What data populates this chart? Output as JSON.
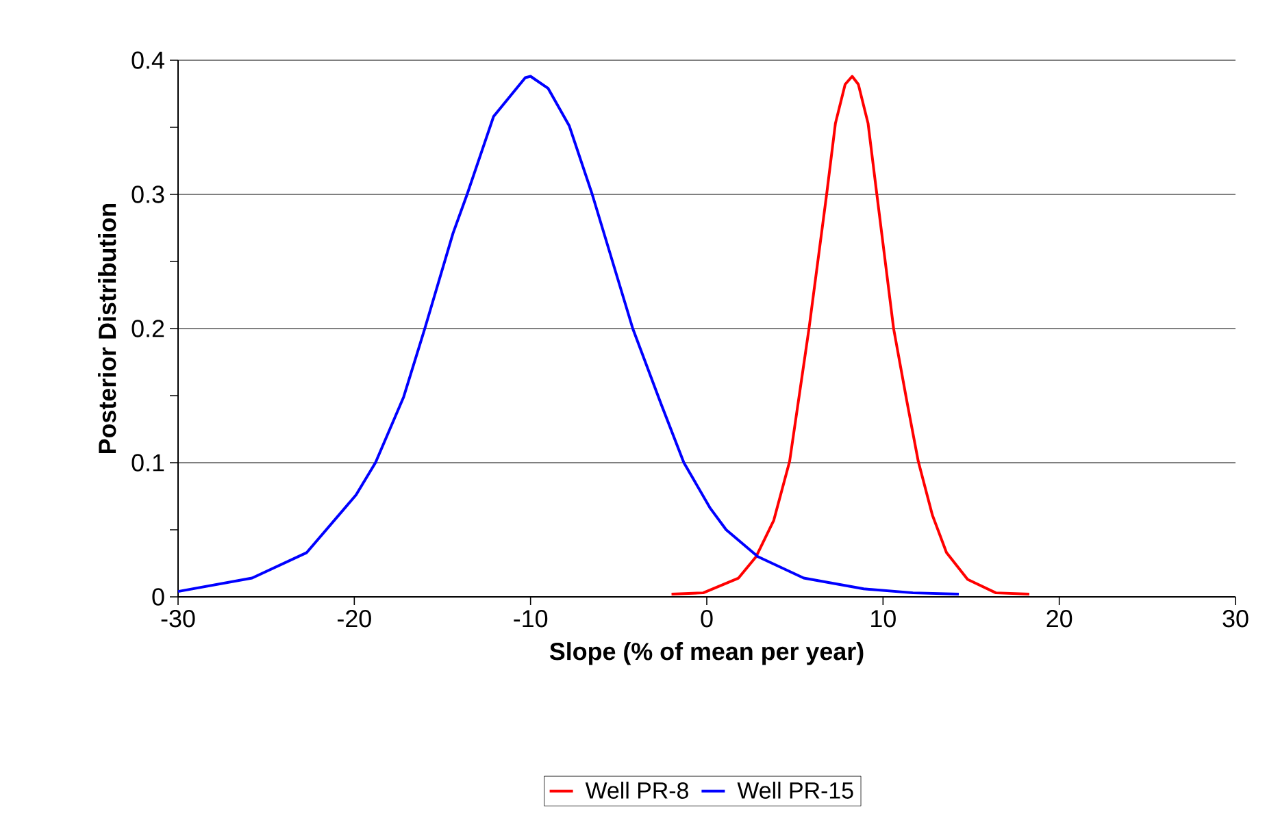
{
  "chart_data": {
    "type": "line",
    "xlabel": "Slope (% of mean per year)",
    "ylabel": "Posterior Distribution",
    "xlim": [
      -30,
      30
    ],
    "xticks": [
      -30,
      -20,
      -10,
      0,
      10,
      20,
      30
    ],
    "ylim": [
      0,
      0.4
    ],
    "yticks": [
      0,
      0.1,
      0.2,
      0.3,
      0.4
    ],
    "grid": "y",
    "legend": "bottom",
    "marker": "none",
    "line_style": "solid",
    "series": [
      {
        "name": "Well PR-8",
        "color": "#ff0000",
        "x": [
          -2.0,
          -0.2,
          1.8,
          2.8,
          3.8,
          4.7,
          5.8,
          6.8,
          7.3,
          7.85,
          8.25,
          8.6,
          9.15,
          9.65,
          10.6,
          11.35,
          12.0,
          12.8,
          13.6,
          14.8,
          16.4,
          18.3
        ],
        "values": [
          0.002,
          0.003,
          0.014,
          0.03,
          0.057,
          0.101,
          0.2,
          0.3,
          0.353,
          0.382,
          0.388,
          0.382,
          0.353,
          0.3,
          0.2,
          0.146,
          0.101,
          0.061,
          0.033,
          0.013,
          0.003,
          0.002
        ]
      },
      {
        "name": "Well PR-15",
        "color": "#0000ff",
        "x": [
          -30,
          -25.8,
          -22.7,
          -19.9,
          -18.8,
          -17.2,
          -16.0,
          -14.4,
          -13.6,
          -12.1,
          -10.3,
          -10.0,
          -9.0,
          -7.8,
          -6.5,
          -4.2,
          -2.6,
          -1.3,
          0.2,
          1.1,
          2.9,
          5.5,
          8.9,
          11.7,
          14.3
        ],
        "values": [
          0.004,
          0.014,
          0.033,
          0.076,
          0.1,
          0.149,
          0.2,
          0.271,
          0.3,
          0.358,
          0.387,
          0.388,
          0.379,
          0.351,
          0.3,
          0.2,
          0.144,
          0.1,
          0.066,
          0.05,
          0.03,
          0.014,
          0.006,
          0.003,
          0.002
        ]
      }
    ]
  }
}
